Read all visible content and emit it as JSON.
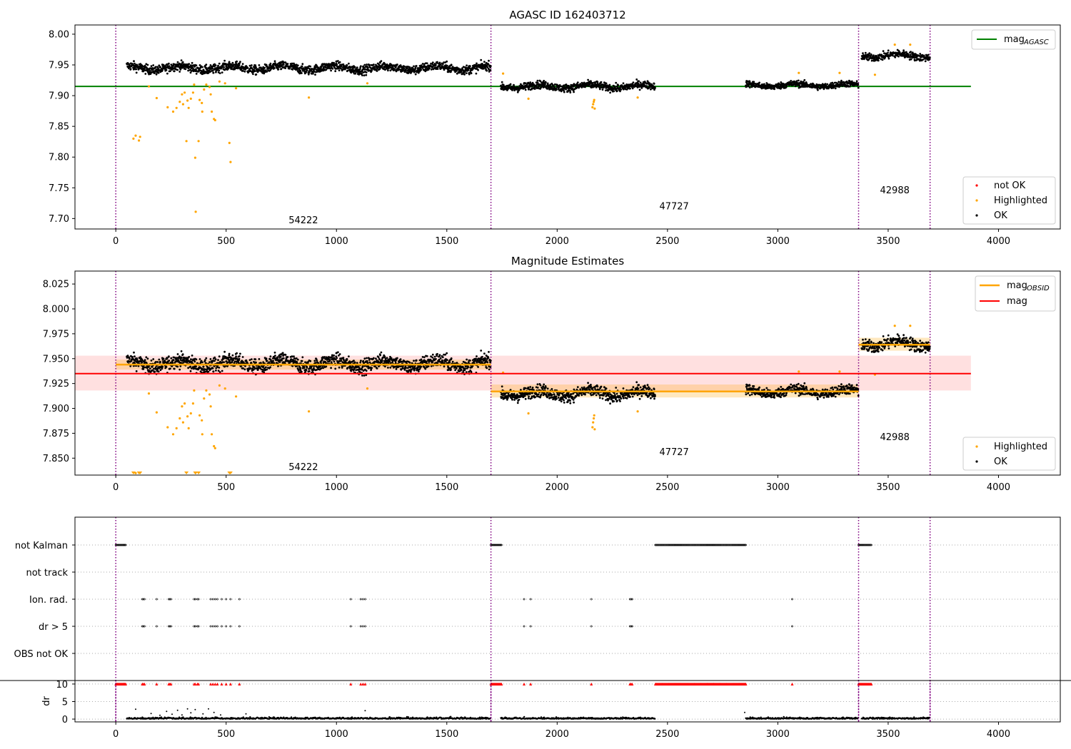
{
  "chart_data": [
    {
      "type": "scatter",
      "title": "AGASC ID 162403712",
      "xlim": [
        -185,
        4280
      ],
      "ylim": [
        7.683,
        8.015
      ],
      "xticks": [
        "0",
        "500",
        "1000",
        "1500",
        "2000",
        "2500",
        "3000",
        "3500",
        "4000"
      ],
      "yticks": [
        "7.70",
        "7.75",
        "7.80",
        "7.85",
        "7.90",
        "7.95",
        "8.00"
      ],
      "hlines": [
        {
          "name": "mag_AGASC",
          "legend_label": "mag",
          "legend_sub": "AGASC",
          "y": 7.915,
          "x_range": [
            -185,
            3875
          ],
          "color": "#008000"
        }
      ],
      "vlines": [
        0,
        1700,
        3366,
        3690
      ],
      "obsid_labels": [
        {
          "text": "54222",
          "x": 850,
          "y": 7.692
        },
        {
          "text": "47727",
          "x": 2530,
          "y": 7.715
        },
        {
          "text": "42988",
          "x": 3530,
          "y": 7.741
        }
      ],
      "segments": [
        {
          "x": [
            50,
            1700
          ],
          "mean": 7.945,
          "noise": 0.007
        },
        {
          "x": [
            1745,
            2445
          ],
          "mean": 7.915,
          "noise": 0.006
        },
        {
          "x": [
            2855,
            3366
          ],
          "mean": 7.917,
          "noise": 0.005
        },
        {
          "x": [
            3380,
            3690
          ],
          "mean": 7.965,
          "noise": 0.006
        }
      ],
      "highlighted": [
        [
          80,
          7.83
        ],
        [
          90,
          7.835
        ],
        [
          105,
          7.827
        ],
        [
          110,
          7.833
        ],
        [
          150,
          7.915
        ],
        [
          185,
          7.896
        ],
        [
          235,
          7.881
        ],
        [
          260,
          7.874
        ],
        [
          275,
          7.88
        ],
        [
          290,
          7.89
        ],
        [
          300,
          7.902
        ],
        [
          305,
          7.886
        ],
        [
          312,
          7.905
        ],
        [
          320,
          7.826
        ],
        [
          325,
          7.892
        ],
        [
          330,
          7.88
        ],
        [
          340,
          7.895
        ],
        [
          350,
          7.905
        ],
        [
          355,
          7.918
        ],
        [
          360,
          7.799
        ],
        [
          362,
          7.711
        ],
        [
          375,
          7.826
        ],
        [
          380,
          7.893
        ],
        [
          390,
          7.888
        ],
        [
          392,
          7.874
        ],
        [
          400,
          7.91
        ],
        [
          410,
          7.918
        ],
        [
          425,
          7.914
        ],
        [
          430,
          7.902
        ],
        [
          435,
          7.874
        ],
        [
          445,
          7.862
        ],
        [
          450,
          7.86
        ],
        [
          470,
          7.923
        ],
        [
          495,
          7.92
        ],
        [
          515,
          7.823
        ],
        [
          520,
          7.792
        ],
        [
          545,
          7.912
        ],
        [
          875,
          7.897
        ],
        [
          1140,
          7.92
        ],
        [
          1755,
          7.936
        ],
        [
          1870,
          7.895
        ],
        [
          2160,
          7.881
        ],
        [
          2163,
          7.886
        ],
        [
          2166,
          7.89
        ],
        [
          2168,
          7.893
        ],
        [
          2170,
          7.879
        ],
        [
          2365,
          7.897
        ],
        [
          3095,
          7.937
        ],
        [
          3280,
          7.937
        ],
        [
          3440,
          7.934
        ],
        [
          3530,
          7.983
        ],
        [
          3600,
          7.983
        ]
      ],
      "legend": [
        "not OK",
        "Highlighted",
        "OK"
      ],
      "legend_colors": [
        "#ff0000",
        "#ffa500",
        "#000000"
      ]
    },
    {
      "type": "scatter",
      "title": "Magnitude Estimates",
      "xlim": [
        -185,
        4280
      ],
      "ylim": [
        7.833,
        8.038
      ],
      "xticks": [
        "0",
        "500",
        "1000",
        "1500",
        "2000",
        "2500",
        "3000",
        "3500",
        "4000"
      ],
      "yticks": [
        "7.850",
        "7.875",
        "7.900",
        "7.925",
        "7.950",
        "7.975",
        "8.000",
        "8.025"
      ],
      "mag": {
        "y": 7.935,
        "band": [
          7.918,
          7.953
        ],
        "x_range": [
          -185,
          3875
        ],
        "color": "#ff0000"
      },
      "mag_obsid": [
        {
          "x": [
            0,
            1700
          ],
          "y": 7.944,
          "band": [
            7.939,
            7.949
          ]
        },
        {
          "x": [
            1700,
            3366
          ],
          "y": 7.917,
          "band": [
            7.911,
            7.924
          ]
        },
        {
          "x": [
            3366,
            3690
          ],
          "y": 7.964,
          "band": [
            7.958,
            7.971
          ]
        }
      ],
      "vlines": [
        0,
        1700,
        3366,
        3690
      ],
      "obsid_labels": [
        {
          "text": "54222",
          "x": 850,
          "y": 7.838
        },
        {
          "text": "47727",
          "x": 2530,
          "y": 7.853
        },
        {
          "text": "42988",
          "x": 3530,
          "y": 7.868
        }
      ],
      "legend_top": [
        {
          "label": "mag",
          "sub": "OBSID",
          "color": "#ffa500"
        },
        {
          "label": "mag",
          "sub": "",
          "color": "#ff0000"
        }
      ],
      "legend_bottom": [
        "Highlighted",
        "OK"
      ],
      "legend_colors": [
        "#ffa500",
        "#000000"
      ]
    },
    {
      "type": "scatter",
      "title": "",
      "xlim": [
        -185,
        4280
      ],
      "xticks": [
        "0",
        "500",
        "1000",
        "1500",
        "2000",
        "2500",
        "3000",
        "3500",
        "4000"
      ],
      "flag_rows": [
        "not Kalman",
        "not track",
        "Ion. rad.",
        "dr > 5",
        "OBS not OK"
      ],
      "flags": {
        "not Kalman": [
          [
            0,
            45
          ],
          [
            1700,
            1750
          ],
          [
            2445,
            2855
          ],
          [
            3366,
            3425
          ]
        ],
        "not track": [],
        "Ion. rad.": [
          120,
          125,
          130,
          185,
          240,
          245,
          250,
          355,
          360,
          370,
          375,
          430,
          440,
          450,
          460,
          480,
          500,
          520,
          560,
          1065,
          1110,
          1120,
          1130,
          1850,
          1880,
          2155,
          2330,
          2335,
          2340,
          3065
        ],
        "dr > 5": [
          120,
          125,
          130,
          185,
          240,
          245,
          250,
          355,
          360,
          370,
          375,
          430,
          440,
          450,
          460,
          480,
          500,
          520,
          560,
          1065,
          1110,
          1120,
          1130,
          1850,
          1880,
          2155,
          2330,
          2335,
          2340,
          3065
        ],
        "OBS not OK": []
      },
      "dr": {
        "ylabel": "dr",
        "yticks": [
          "0",
          "5",
          "10"
        ],
        "ylim": [
          -0.8,
          11
        ],
        "cap": 10,
        "outliers": [
          [
            90,
            2.8
          ],
          [
            160,
            1.6
          ],
          [
            200,
            1.1
          ],
          [
            230,
            2.2
          ],
          [
            255,
            1.4
          ],
          [
            280,
            2.5
          ],
          [
            300,
            1.2
          ],
          [
            325,
            2.9
          ],
          [
            340,
            1.8
          ],
          [
            360,
            2.7
          ],
          [
            395,
            1.5
          ],
          [
            420,
            2.9
          ],
          [
            445,
            1.9
          ],
          [
            475,
            1.2
          ],
          [
            590,
            1.5
          ],
          [
            1130,
            2.4
          ],
          [
            2850,
            1.9
          ]
        ]
      }
    }
  ]
}
